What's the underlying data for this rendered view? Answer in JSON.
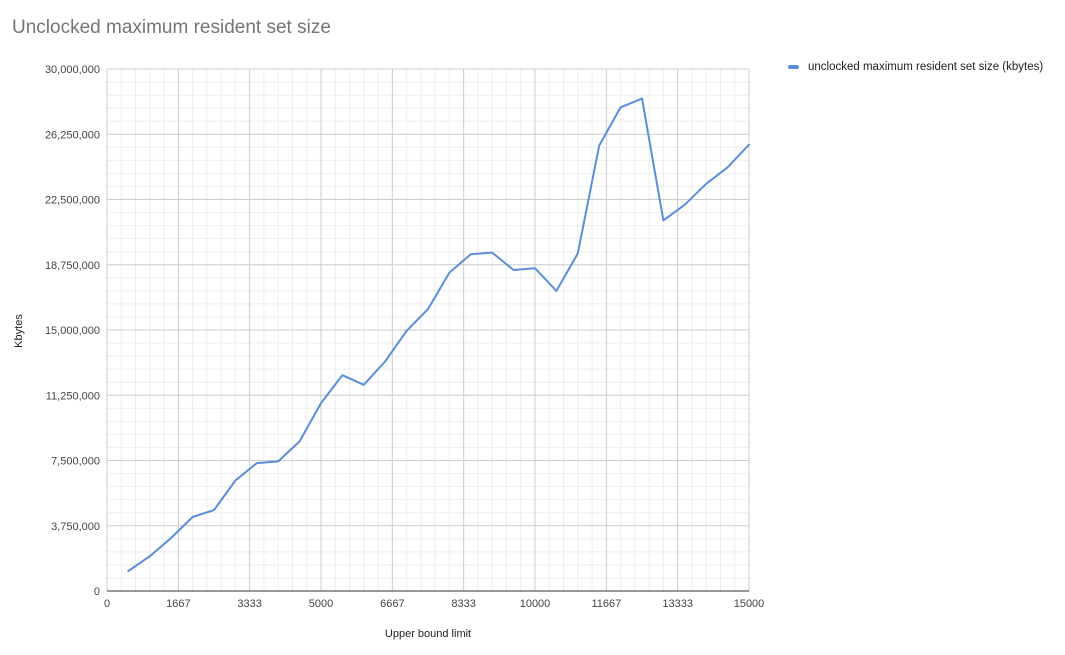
{
  "chart_data": {
    "type": "line",
    "title": "Unclocked maximum resident set size",
    "xlabel": "Upper bound limit",
    "ylabel": "Kbytes",
    "xlim": [
      0,
      15000
    ],
    "ylim": [
      0,
      30000000
    ],
    "x_ticks": [
      0,
      1667,
      3333,
      5000,
      6667,
      8333,
      10000,
      11667,
      13333,
      15000
    ],
    "x_tick_labels": [
      "0",
      "1667",
      "3333",
      "5000",
      "6667",
      "8333",
      "10000",
      "11667",
      "13333",
      "15000"
    ],
    "y_ticks": [
      0,
      3750000,
      7500000,
      11250000,
      15000000,
      18750000,
      22500000,
      26250000,
      30000000
    ],
    "y_tick_labels": [
      "0",
      "3,750,000",
      "7,500,000",
      "11,250,000",
      "15,000,000",
      "18,750,000",
      "22,500,000",
      "26,250,000",
      "30,000,000"
    ],
    "grid": true,
    "legend_position": "top-right",
    "x": [
      500,
      1000,
      1500,
      2000,
      2500,
      3000,
      3500,
      4000,
      4500,
      5000,
      5500,
      6000,
      6500,
      7000,
      7500,
      8000,
      8500,
      9000,
      9500,
      10000,
      10500,
      11000,
      11500,
      12000,
      12500,
      13000,
      13500,
      14000,
      14500,
      15000
    ],
    "series": [
      {
        "name": "unclocked maximum resident set size (kbytes)",
        "color": "#5b8ed8",
        "values": [
          1150000,
          2000000,
          3050000,
          4250000,
          4650000,
          6350000,
          7350000,
          7450000,
          8600000,
          10800000,
          12400000,
          11850000,
          13200000,
          14950000,
          16200000,
          18300000,
          19350000,
          19450000,
          18450000,
          18550000,
          17250000,
          19400000,
          25600000,
          27800000,
          28300000,
          21300000,
          22200000,
          23400000,
          24350000,
          25650000
        ]
      }
    ]
  }
}
